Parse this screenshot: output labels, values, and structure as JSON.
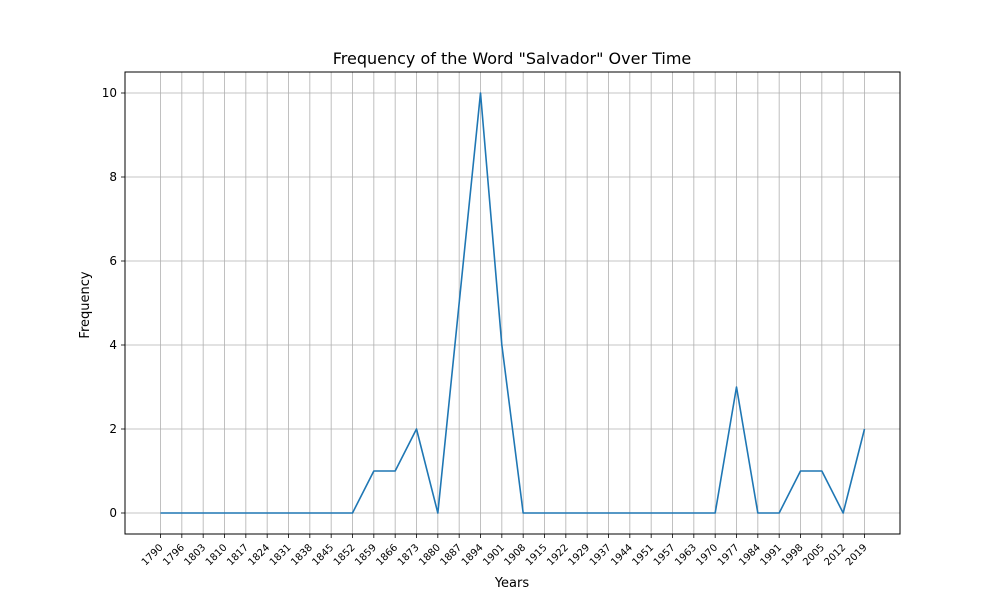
{
  "chart_data": {
    "type": "line",
    "title": "Frequency of the Word \"Salvador\" Over Time",
    "xlabel": "Years",
    "ylabel": "Frequency",
    "ylim": [
      -0.5,
      10.5
    ],
    "yticks": [
      0,
      2,
      4,
      6,
      8,
      10
    ],
    "grid": true,
    "series": [
      {
        "name": "Salvador",
        "color": "#1f77b4",
        "values": [
          0,
          0,
          0,
          0,
          0,
          0,
          0,
          0,
          0,
          0,
          1,
          1,
          2,
          0,
          5,
          10,
          4,
          0,
          0,
          0,
          0,
          0,
          0,
          0,
          0,
          0,
          0,
          3,
          0,
          0,
          1,
          1,
          0,
          2
        ]
      }
    ],
    "categories": [
      "1790",
      "1796",
      "1803",
      "1810",
      "1817",
      "1824",
      "1831",
      "1838",
      "1845",
      "1852",
      "1859",
      "1866",
      "1873",
      "1880",
      "1887",
      "1894",
      "1901",
      "1908",
      "1915",
      "1922",
      "1929",
      "1937",
      "1944",
      "1951",
      "1957",
      "1963",
      "1970",
      "1977",
      "1984",
      "1991",
      "1998",
      "2005",
      "2012",
      "2019"
    ]
  }
}
